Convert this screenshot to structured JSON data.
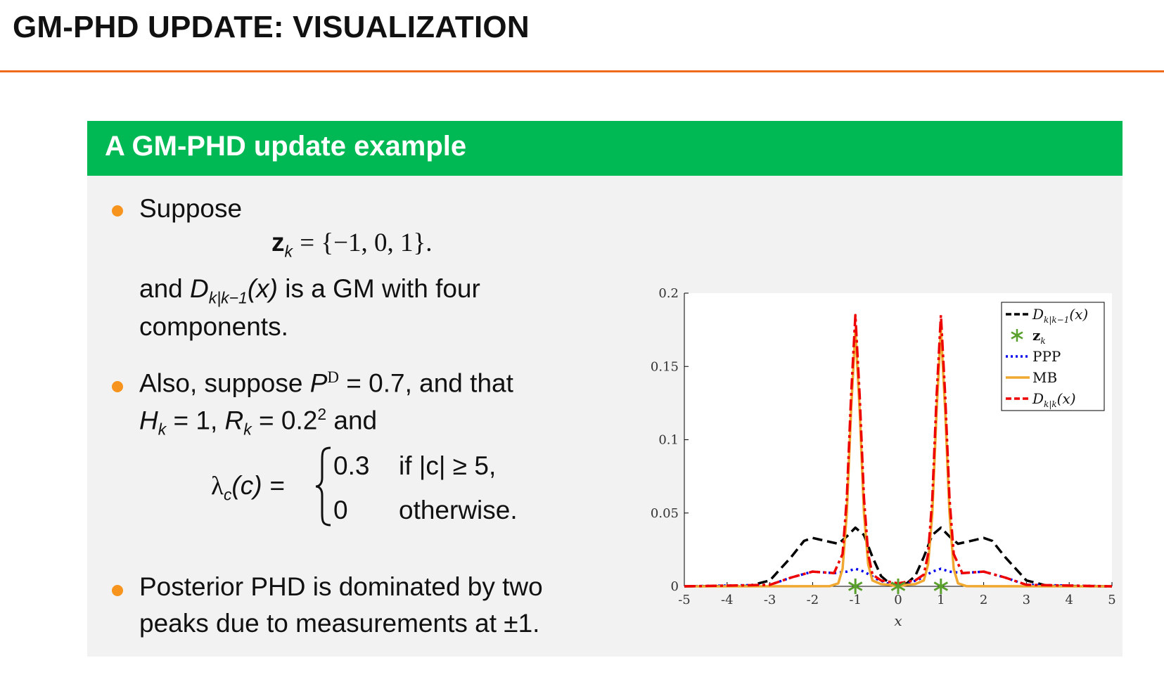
{
  "slide": {
    "title": "GM-PHD UPDATE: VISUALIZATION",
    "accent_color": "#f06a1e",
    "block_color": "#00b955",
    "bullet_color": "#f7941d"
  },
  "block": {
    "title": "A GM-PHD update example",
    "bullet1": {
      "intro": "Suppose",
      "eq_lhs": "z",
      "eq_sub": "k",
      "eq_rhs": "= {−1, 0, 1}.",
      "line2_pre": "and ",
      "line2_D": "D",
      "line2_sub": "k|k−1",
      "line2_arg": "(x)",
      "line2_post": " is a GM with four",
      "line3": "components."
    },
    "bullet2": {
      "line1_pre": "Also, suppose ",
      "PD": "P",
      "PD_sup": "D",
      "line1_post": " = 0.7, and that",
      "H": "H",
      "H_sub": "k",
      "H_val": " = 1, ",
      "R": "R",
      "R_sub": "k",
      "R_val": " = 0.2",
      "R_sup": "2",
      "and": " and",
      "lambda_lhs": "λ",
      "lambda_sub": "c",
      "lambda_arg": "(c) =",
      "case1_val": "0.3",
      "case1_cond": "if |c| ≥ 5,",
      "case2_val": "0",
      "case2_cond": "otherwise."
    },
    "bullet3": {
      "line1": "Posterior PHD is dominated by two",
      "line2": "peaks due to measurements at ±1."
    }
  },
  "chart_data": {
    "type": "line",
    "xlabel": "x",
    "ylabel": "",
    "xlim": [
      -5,
      5
    ],
    "ylim": [
      0,
      0.2
    ],
    "xticks": [
      "-5",
      "-4",
      "-3",
      "-2",
      "-1",
      "0",
      "1",
      "2",
      "3",
      "4",
      "5"
    ],
    "yticks": [
      "0",
      "0.05",
      "0.1",
      "0.15",
      "0.2"
    ],
    "legend_position": "top-right",
    "grid": false,
    "series": [
      {
        "name": "D_{k|k−1}(x)",
        "color": "#000000",
        "style": "dashed",
        "x": [
          -5,
          -3.5,
          -3,
          -2.5,
          -2.2,
          -2,
          -1.7,
          -1.4,
          -1.2,
          -1,
          -0.8,
          -0.6,
          -0.4,
          -0.2,
          0,
          0.2,
          0.4,
          0.6,
          0.8,
          1,
          1.2,
          1.4,
          1.7,
          2,
          2.2,
          2.5,
          3,
          3.5,
          5
        ],
        "y": [
          0,
          0.0003,
          0.004,
          0.02,
          0.031,
          0.033,
          0.031,
          0.029,
          0.034,
          0.04,
          0.035,
          0.02,
          0.007,
          0.002,
          0.0005,
          0.002,
          0.007,
          0.02,
          0.035,
          0.04,
          0.034,
          0.029,
          0.031,
          0.033,
          0.031,
          0.02,
          0.004,
          0.0003,
          0
        ]
      },
      {
        "name": "z_k",
        "color": "#5aa02c",
        "style": "markers",
        "x": [
          -1,
          0,
          1
        ],
        "y": [
          0,
          0,
          0
        ]
      },
      {
        "name": "PPP",
        "color": "#0000ee",
        "style": "dotted",
        "x": [
          -5,
          -3,
          -2.5,
          -2,
          -1.5,
          -1.2,
          -1,
          -0.8,
          -0.5,
          -0.2,
          0,
          0.2,
          0.5,
          0.8,
          1,
          1.2,
          1.5,
          2,
          2.5,
          3,
          5
        ],
        "y": [
          0,
          0.001,
          0.006,
          0.01,
          0.009,
          0.01,
          0.012,
          0.01,
          0.005,
          0.0015,
          0.0003,
          0.0015,
          0.005,
          0.01,
          0.012,
          0.01,
          0.009,
          0.01,
          0.006,
          0.001,
          0
        ]
      },
      {
        "name": "MB",
        "color": "#f0a830",
        "style": "solid",
        "x": [
          -5,
          -1.6,
          -1.4,
          -1.3,
          -1.2,
          -1.1,
          -1,
          -0.9,
          -0.8,
          -0.7,
          -0.6,
          -0.4,
          -0.2,
          0,
          0.2,
          0.4,
          0.6,
          0.7,
          0.8,
          0.9,
          1,
          1.1,
          1.2,
          1.3,
          1.4,
          1.6,
          5
        ],
        "y": [
          0,
          0.0001,
          0.002,
          0.012,
          0.05,
          0.12,
          0.175,
          0.12,
          0.05,
          0.015,
          0.004,
          0.0015,
          0.001,
          0,
          0.001,
          0.0015,
          0.004,
          0.015,
          0.05,
          0.12,
          0.175,
          0.12,
          0.05,
          0.012,
          0.002,
          0.0001,
          0
        ]
      },
      {
        "name": "D_{k|k}(x)",
        "color": "#ee0000",
        "style": "dashdot",
        "x": [
          -5,
          -3,
          -2.5,
          -2,
          -1.5,
          -1.3,
          -1.2,
          -1.1,
          -1,
          -0.9,
          -0.8,
          -0.7,
          -0.6,
          -0.4,
          -0.2,
          0,
          0.2,
          0.4,
          0.6,
          0.7,
          0.8,
          0.9,
          1,
          1.1,
          1.2,
          1.3,
          1.5,
          2,
          2.5,
          3,
          5
        ],
        "y": [
          0,
          0.001,
          0.006,
          0.01,
          0.009,
          0.022,
          0.06,
          0.13,
          0.185,
          0.13,
          0.06,
          0.022,
          0.008,
          0.004,
          0.003,
          0.002,
          0.003,
          0.004,
          0.008,
          0.022,
          0.06,
          0.13,
          0.185,
          0.13,
          0.06,
          0.022,
          0.009,
          0.01,
          0.006,
          0.001,
          0
        ]
      }
    ]
  }
}
